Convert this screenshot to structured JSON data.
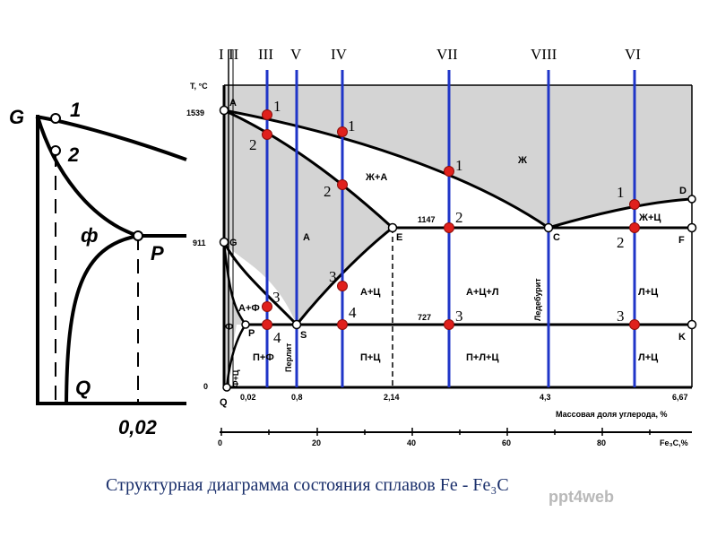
{
  "inset": {
    "points": {
      "G": "G",
      "one": "1",
      "two": "2",
      "P": "P",
      "Q": "Q"
    },
    "phase": "ф",
    "axis_value": "0,02"
  },
  "main": {
    "y_axis_title": "T, °C",
    "temperatures": {
      "t1539": "1539",
      "t1147": "1147",
      "t911": "911",
      "t727": "727",
      "t0": "0"
    },
    "points": {
      "A": "A",
      "D": "D",
      "E": "E",
      "C": "C",
      "F": "F",
      "G": "G",
      "P": "P",
      "S": "S",
      "K": "K",
      "Q": "Q"
    },
    "regions": {
      "liquid": "Ж",
      "liquid_austenite": "Ж+А",
      "austenite": "А",
      "liquid_cementite": "Ж+Ц",
      "austenite_ferrite": "А+Ф",
      "ferrite": "Ф",
      "austenite_cementite": "А+Ц",
      "austenite_cementite_ledeburite": "А+Ц+Л",
      "ledeburite_cementite_upper": "Л+Ц",
      "pearlite_ferrite": "П+Ф",
      "pearlite": "Перлит",
      "pearlite_cementite": "П+Ц",
      "pearlite_ledeburite_cementite": "П+Л+Ц",
      "ledeburite_cementite_lower": "Л+Ц",
      "ferrite_cementite": "Ф+Ц",
      "ledeburite": "Ледебурит"
    },
    "carbon_ticks": [
      "0,02",
      "0,8",
      "2,14",
      "4,3",
      "6,67"
    ],
    "carbon_axis_title": "Массовая доля углерода, %",
    "fe3c_ticks": [
      "0",
      "20",
      "40",
      "60",
      "80"
    ],
    "fe3c_axis_title": "Fe₃C,%",
    "alloy_lines": [
      "I",
      "II",
      "III",
      "V",
      "IV",
      "VII",
      "VIII",
      "VI"
    ],
    "intersection_numbers": {
      "II_1": "1",
      "II_2": "2",
      "II_3": "3",
      "II_4": "4",
      "IV_1": "1",
      "IV_2": "2",
      "IV_3": "3",
      "IV_4": "4",
      "VII_1": "1",
      "VII_2": "2",
      "VII_3": "3",
      "VI_1": "1",
      "VI_2": "2",
      "VI_3": "3"
    },
    "colors": {
      "alloy_line": "#1f35c8",
      "intersection": "#e0201c",
      "two_phase_fill": "#d4d4d4",
      "frame": "#000000"
    }
  },
  "caption": "Структурная диаграмма состояния сплавов Fe - Fe₃C",
  "watermark": "ppt4web"
}
